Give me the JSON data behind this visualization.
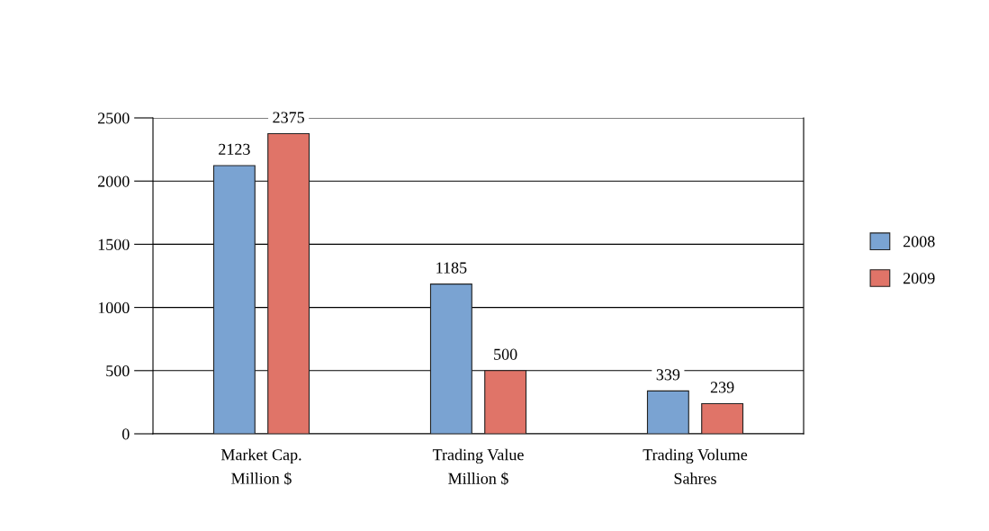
{
  "chart_data": {
    "type": "bar",
    "categories": [
      "Market Cap.\nMillion $",
      "Trading Value\nMillion $",
      "Trading Volume\nSahres"
    ],
    "series": [
      {
        "name": "2008",
        "color": "#7aa3d2",
        "values": [
          2123,
          1185,
          339
        ]
      },
      {
        "name": "2009",
        "color": "#e07468",
        "values": [
          2375,
          500,
          239
        ]
      }
    ],
    "ylim": [
      0,
      2500
    ],
    "yticks": [
      0,
      500,
      1000,
      1500,
      2000,
      2500
    ],
    "grid": "y",
    "legend": "right",
    "data_labels": true
  }
}
